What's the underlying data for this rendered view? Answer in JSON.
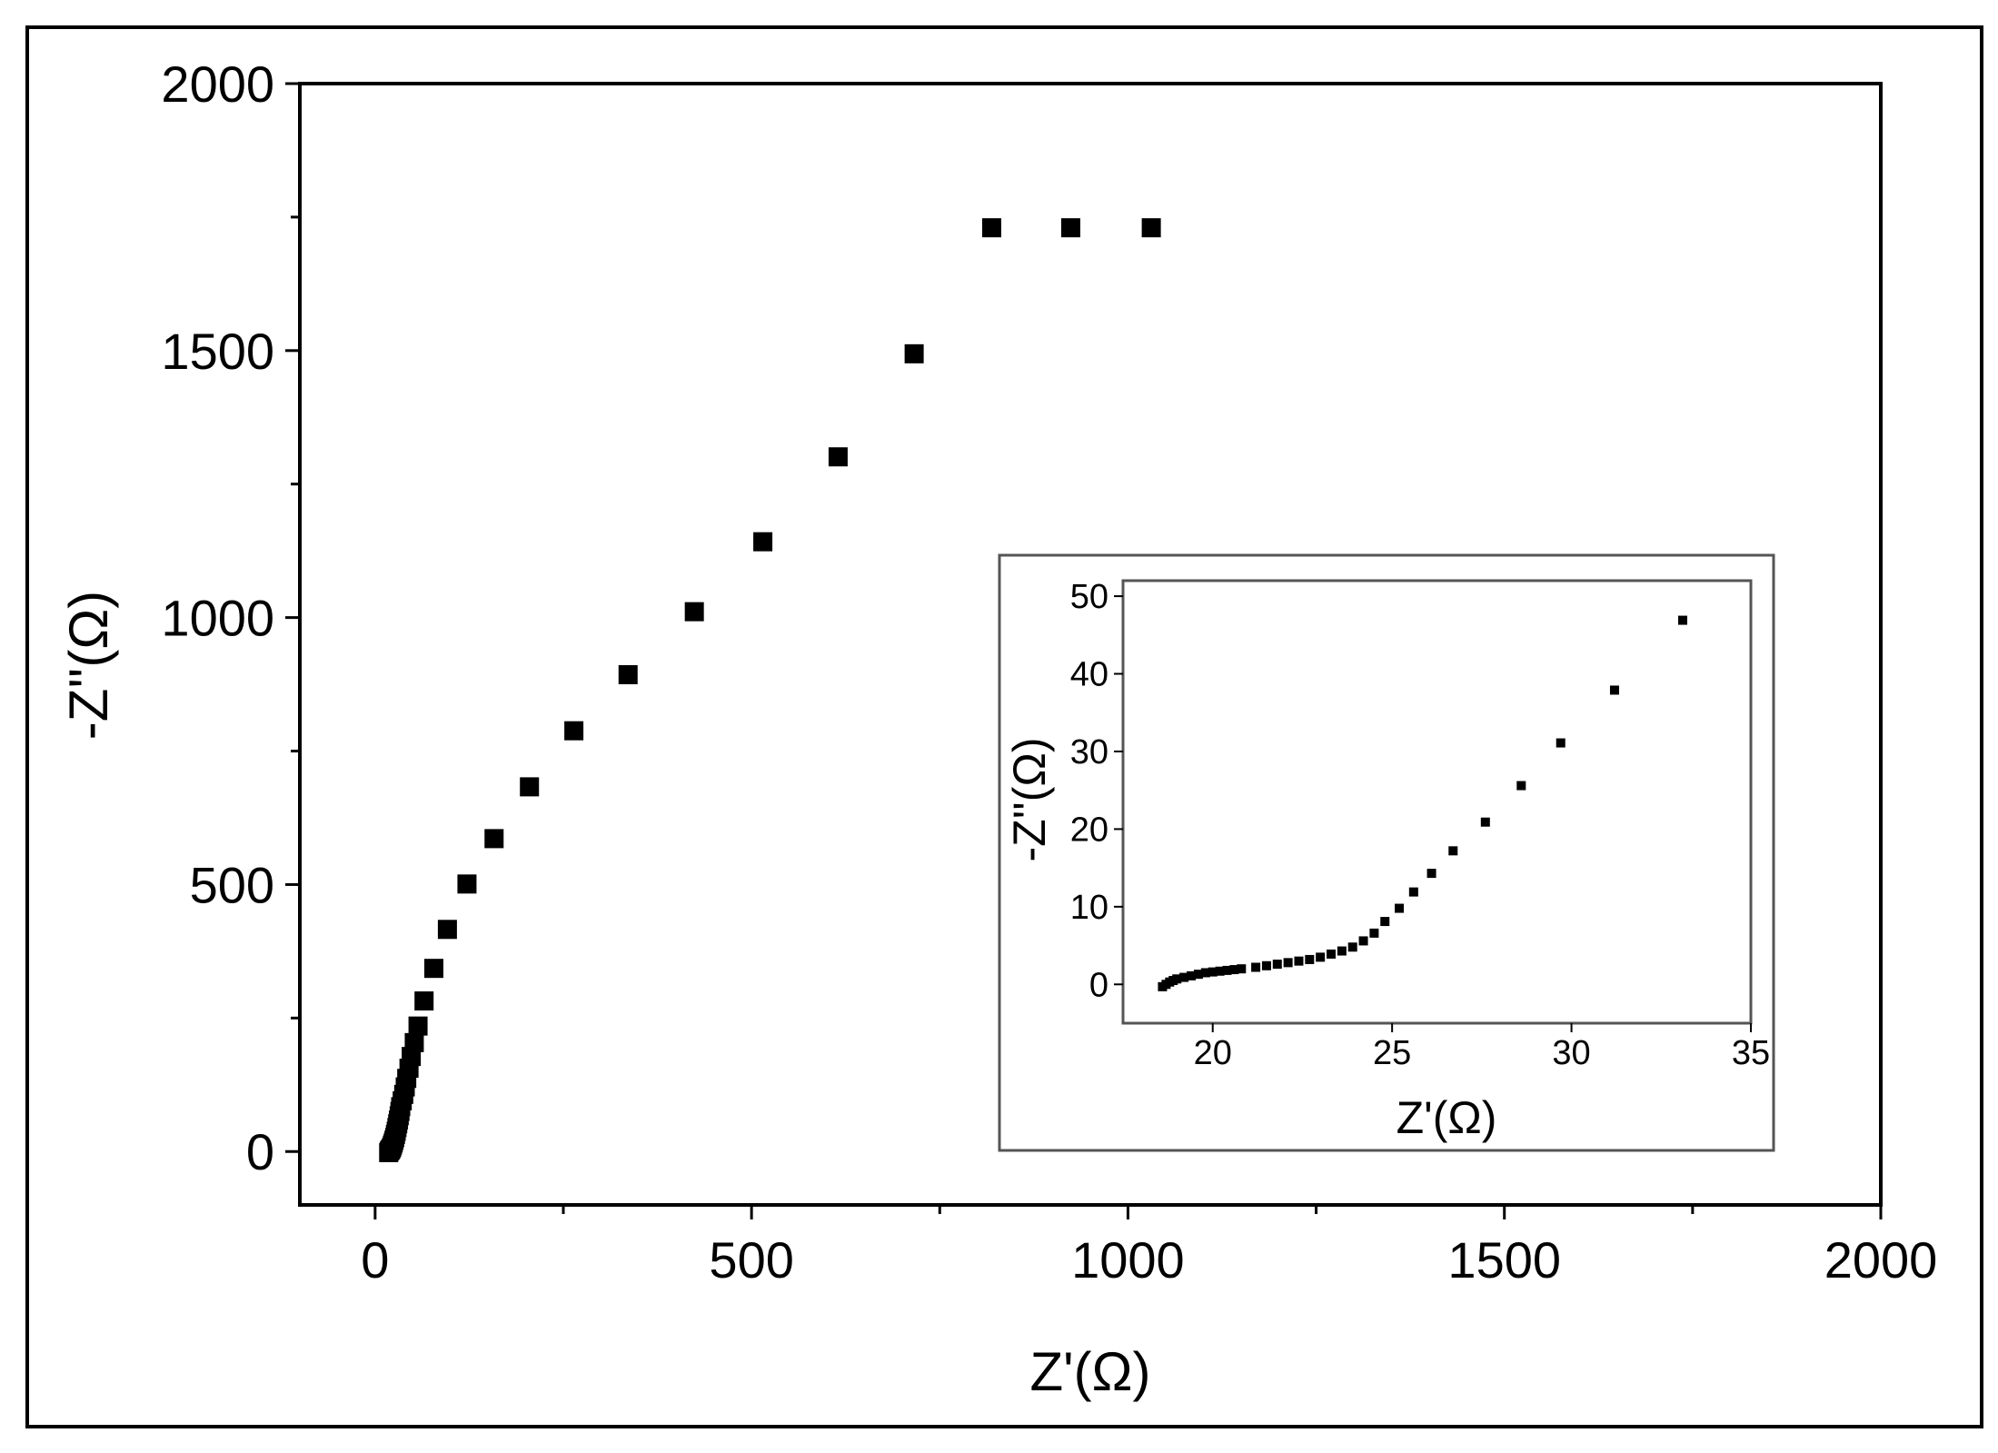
{
  "colors": {
    "background": "#ffffff",
    "axis": "#000000",
    "marker": "#000000",
    "inset_frame": "#555555"
  },
  "chart_data": [
    {
      "id": "main",
      "type": "scatter",
      "title": "",
      "xlabel": "Z'(Ω)",
      "ylabel": "-Z''(Ω)",
      "xlim": [
        -100,
        2000
      ],
      "ylim": [
        -100,
        2000
      ],
      "xticks": [
        0,
        500,
        1000,
        1500,
        2000
      ],
      "yticks": [
        0,
        500,
        1000,
        1500,
        2000
      ],
      "xtick_labels": [
        "0",
        "500",
        "1000",
        "1500",
        "2000"
      ],
      "ytick_labels": [
        "0",
        "500",
        "1000",
        "1500",
        "2000"
      ],
      "minor_step": 250,
      "grid": false,
      "legend": "none",
      "marker": "square",
      "series": [
        {
          "x": [
            18,
            19,
            20,
            21,
            22,
            23,
            24,
            25,
            26,
            27,
            28,
            29,
            30,
            31,
            32,
            33,
            34,
            36,
            38,
            40,
            42,
            45,
            48,
            52,
            57,
            65,
            78,
            96,
            122,
            158,
            205,
            264,
            336,
            424,
            515,
            615,
            716,
            819,
            924,
            1031
          ],
          "y": [
            -2,
            1,
            3,
            5,
            8,
            12,
            16,
            21,
            26,
            32,
            38,
            45,
            52,
            59,
            67,
            75,
            84,
            95,
            107,
            121,
            137,
            156,
            178,
            204,
            235,
            282,
            343,
            416,
            501,
            586,
            683,
            788,
            893,
            1011,
            1142,
            1301,
            1494,
            1730,
            1730,
            1730
          ]
        }
      ]
    },
    {
      "id": "inset",
      "type": "scatter",
      "title": "",
      "xlabel": "Z'(Ω)",
      "ylabel": "-Z''(Ω)",
      "xlim": [
        17.5,
        35
      ],
      "ylim": [
        -5,
        52
      ],
      "xticks": [
        20,
        25,
        30,
        35
      ],
      "yticks": [
        0,
        10,
        20,
        30,
        40,
        50
      ],
      "xtick_labels": [
        "20",
        "25",
        "30",
        "35"
      ],
      "ytick_labels": [
        "0",
        "10",
        "20",
        "30",
        "40",
        "50"
      ],
      "grid": false,
      "legend": "none",
      "marker": "square",
      "series": [
        {
          "x": [
            18.6,
            18.7,
            18.8,
            18.9,
            19.0,
            19.2,
            19.4,
            19.6,
            19.8,
            20.0,
            20.2,
            20.4,
            20.6,
            20.8,
            21.2,
            21.5,
            21.8,
            22.1,
            22.4,
            22.7,
            23.0,
            23.3,
            23.6,
            23.9,
            24.2,
            24.5,
            24.8,
            25.2,
            25.6,
            26.1,
            26.7,
            27.6,
            28.6,
            29.7,
            31.2,
            33.1
          ],
          "y": [
            -0.3,
            0.0,
            0.3,
            0.5,
            0.7,
            0.9,
            1.1,
            1.3,
            1.5,
            1.6,
            1.7,
            1.8,
            1.9,
            2.0,
            2.2,
            2.4,
            2.6,
            2.8,
            3.0,
            3.2,
            3.5,
            3.9,
            4.3,
            4.8,
            5.6,
            6.6,
            8.1,
            9.8,
            11.9,
            14.3,
            17.2,
            20.9,
            25.6,
            31.1,
            37.9,
            46.9
          ]
        }
      ]
    }
  ]
}
